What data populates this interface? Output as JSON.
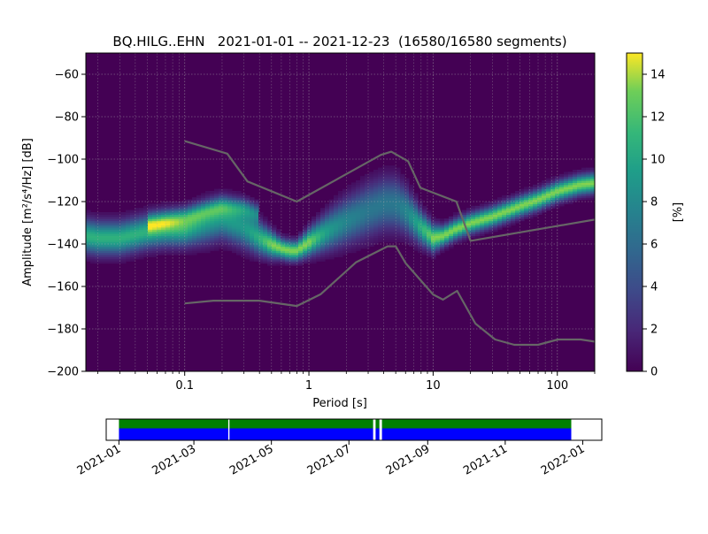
{
  "chart_data": [
    {
      "type": "heatmap",
      "title": "BQ.HILG..EHN   2021-01-01 -- 2021-12-23  (16580/16580 segments)",
      "xlabel": "Period [s]",
      "ylabel": "Amplitude [m²/s⁴/Hz] [dB]",
      "x_scale": "log",
      "xlim": [
        0.016,
        200
      ],
      "ylim": [
        -200,
        -50
      ],
      "x_ticks": [
        0.1,
        1,
        10,
        100
      ],
      "x_tick_labels": [
        "0.1",
        "1",
        "10",
        "100"
      ],
      "y_ticks": [
        -200,
        -180,
        -160,
        -140,
        -120,
        -100,
        -80,
        -60
      ],
      "y_tick_labels": [
        "−200",
        "−180",
        "−160",
        "−140",
        "−120",
        "−100",
        "−80",
        "−60"
      ],
      "grid": true,
      "colormap": "viridis",
      "colorbar": {
        "label": "[%]",
        "range": [
          0,
          15
        ],
        "ticks": [
          0,
          2,
          4,
          6,
          8,
          10,
          12,
          14
        ],
        "tick_labels": [
          "0",
          "2",
          "4",
          "6",
          "8",
          "10",
          "12",
          "14"
        ]
      },
      "mode_curve": {
        "period": [
          0.016,
          0.02,
          0.03,
          0.05,
          0.07,
          0.1,
          0.15,
          0.2,
          0.3,
          0.4,
          0.5,
          0.6,
          0.7,
          0.8,
          1,
          1.5,
          2,
          3,
          4,
          5,
          6,
          8,
          10,
          12,
          15,
          20,
          30,
          50,
          70,
          100,
          150,
          200
        ],
        "db": [
          -136,
          -137,
          -137,
          -134,
          -133,
          -133,
          -130,
          -128,
          -132,
          -137,
          -140,
          -142,
          -143,
          -143,
          -139,
          -133,
          -129,
          -124,
          -121,
          -121,
          -124,
          -132,
          -137,
          -136,
          -133,
          -130,
          -127,
          -122,
          -119,
          -115,
          -112,
          -111
        ],
        "spread_db": [
          5,
          5,
          5,
          5,
          5,
          5,
          6,
          6,
          6,
          5,
          4,
          3,
          3,
          3,
          4,
          6,
          7,
          8,
          8,
          8,
          7,
          5,
          4,
          3,
          3,
          3,
          3,
          3,
          3,
          3,
          3,
          3
        ]
      },
      "upper_branch": {
        "period": [
          0.05,
          0.1,
          0.15,
          0.2,
          0.3,
          0.4
        ],
        "db": [
          -130,
          -127,
          -124,
          -122,
          -123,
          -126
        ]
      },
      "noise_models": [
        {
          "period": [
            0.1,
            0.22,
            0.32,
            0.8,
            3.8,
            4.6,
            6.3,
            7.9,
            15.4,
            20,
            354.8
          ],
          "db": [
            -91.5,
            -97.4,
            -110.5,
            -120,
            -98,
            -96.5,
            -101,
            -113.5,
            -120,
            -138.5,
            -126
          ]
        },
        {
          "period": [
            0.1,
            0.17,
            0.4,
            0.8,
            1.24,
            2.4,
            4.3,
            5,
            6,
            10,
            12,
            15.6,
            21.9,
            31.6,
            45,
            70,
            101,
            154,
            200
          ],
          "db": [
            -168,
            -166.7,
            -166.7,
            -169.2,
            -163.7,
            -148.6,
            -141.1,
            -141.1,
            -149.0,
            -163.8,
            -166.2,
            -162.1,
            -177.5,
            -185,
            -187.5,
            -187.5,
            -185,
            -185,
            -186
          ]
        }
      ],
      "noise_model_color": "#666666"
    },
    {
      "type": "timeline",
      "xlim": [
        "2020-12-22",
        "2022-01-16"
      ],
      "x_ticks": [
        "2021-01-01",
        "2021-03-01",
        "2021-05-01",
        "2021-07-01",
        "2021-09-01",
        "2021-11-01",
        "2022-01-01"
      ],
      "x_tick_labels": [
        "2021-01",
        "2021-03",
        "2021-05",
        "2021-07",
        "2021-09",
        "2021-11",
        "2022-01"
      ],
      "coverage": [
        [
          "2021-01-01",
          "2021-03-28"
        ],
        [
          "2021-03-29",
          "2021-07-20"
        ],
        [
          "2021-07-22",
          "2021-07-25"
        ],
        [
          "2021-07-27",
          "2021-12-23"
        ]
      ],
      "colors": {
        "upper": "#008000",
        "lower": "#0000ff"
      }
    }
  ]
}
